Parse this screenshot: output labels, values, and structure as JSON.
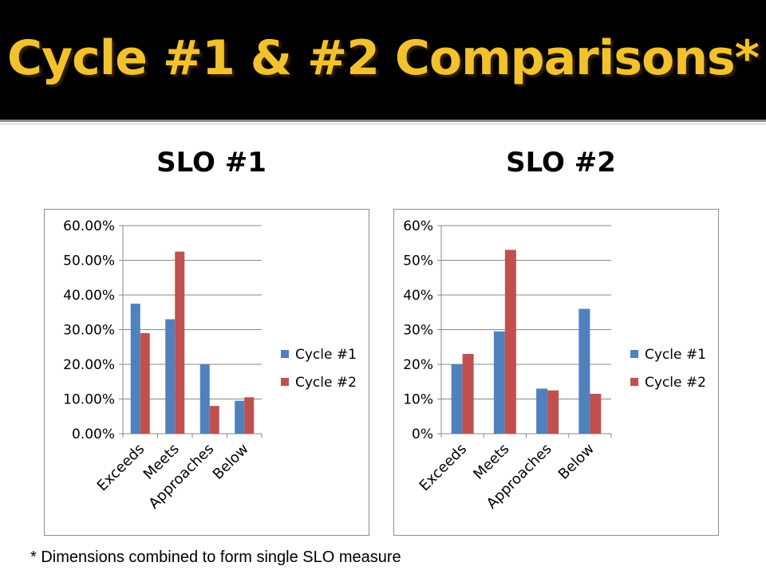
{
  "slide": {
    "title": "Cycle #1 & #2 Comparisons*",
    "footnote": "* Dimensions combined to form single SLO measure"
  },
  "colors": {
    "series1": "#4f81bd",
    "series2": "#c0504d",
    "title": "#f2c22e",
    "grid": "#888888"
  },
  "chart_data": [
    {
      "type": "bar",
      "title": "SLO #1",
      "categories": [
        "Exceeds",
        "Meets",
        "Approaches",
        "Below"
      ],
      "series": [
        {
          "name": "Cycle #1",
          "values": [
            0.375,
            0.33,
            0.2,
            0.095
          ]
        },
        {
          "name": "Cycle #2",
          "values": [
            0.29,
            0.525,
            0.08,
            0.105
          ]
        }
      ],
      "ylim": [
        0,
        0.6
      ],
      "yticks": [
        "0.00%",
        "10.00%",
        "20.00%",
        "30.00%",
        "40.00%",
        "50.00%",
        "60.00%"
      ],
      "xlabel": "",
      "ylabel": "",
      "grid": true,
      "legend": "right"
    },
    {
      "type": "bar",
      "title": "SLO #2",
      "categories": [
        "Exceeds",
        "Meets",
        "Approaches",
        "Below"
      ],
      "series": [
        {
          "name": "Cycle #1",
          "values": [
            0.2,
            0.295,
            0.13,
            0.36
          ]
        },
        {
          "name": "Cycle #2",
          "values": [
            0.23,
            0.53,
            0.125,
            0.115
          ]
        }
      ],
      "ylim": [
        0,
        0.6
      ],
      "yticks": [
        "0%",
        "10%",
        "20%",
        "30%",
        "40%",
        "50%",
        "60%"
      ],
      "xlabel": "",
      "ylabel": "",
      "grid": true,
      "legend": "right"
    }
  ]
}
